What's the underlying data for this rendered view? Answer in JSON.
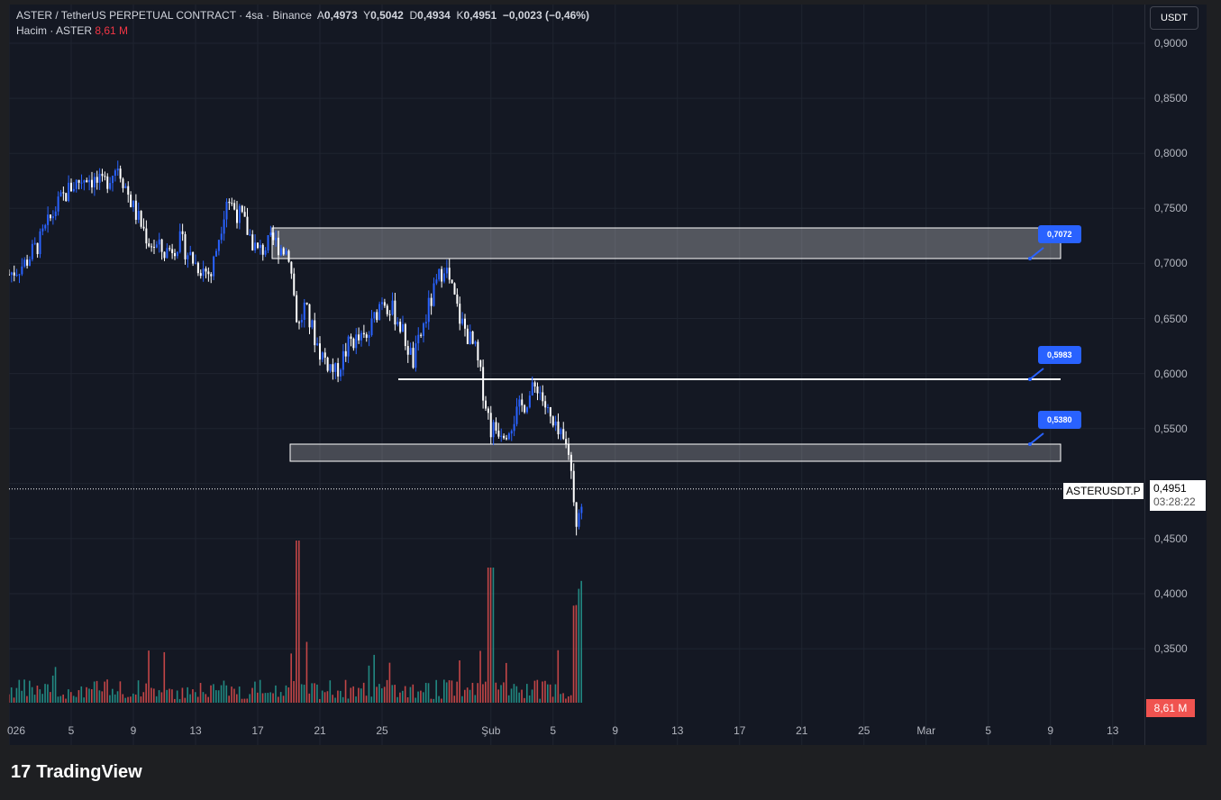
{
  "legend": {
    "title": "ASTER / TetherUS PERPETUAL CONTRACT · 4sa · Binance",
    "o_label": "A",
    "o": "0,4973",
    "h_label": "Y",
    "h": "0,5042",
    "l_label": "D",
    "l": "0,4934",
    "c_label": "K",
    "c": "0,4951",
    "change": "−0,0023 (−0,46%)",
    "volume_label": "Hacim · ASTER",
    "volume": "8,61 M"
  },
  "currency": "USDT",
  "price_axis": [
    "0,9000",
    "0,8500",
    "0,8000",
    "0,7500",
    "0,7000",
    "0,6500",
    "0,6000",
    "0,5500",
    "0,4500",
    "0,4000",
    "0,3500"
  ],
  "date_axis": [
    "026",
    "5",
    "9",
    "13",
    "17",
    "21",
    "25",
    "Şub",
    "5",
    "9",
    "13",
    "17",
    "21",
    "25",
    "Mar",
    "5",
    "9",
    "13"
  ],
  "symbol_tag": "ASTERUSDT.P",
  "last_price": "0,4951",
  "countdown": "03:28:22",
  "volume_tag": "8,61 M",
  "levels": [
    {
      "label": "0,7072",
      "value": 0.7072
    },
    {
      "label": "0,5983",
      "value": 0.5983
    },
    {
      "label": "0,5380",
      "value": 0.538
    }
  ],
  "colors": {
    "up": "#2962ff",
    "down": "#ffffff",
    "vol_up": "#26a69a",
    "vol_down": "#ef5350"
  },
  "chart_data": {
    "type": "candlestick",
    "ylim": [
      0.33,
      0.92
    ],
    "anchors_day_price": [
      [
        0,
        0.69
      ],
      [
        1,
        0.7
      ],
      [
        2,
        0.72
      ],
      [
        3,
        0.75
      ],
      [
        4,
        0.77
      ],
      [
        5,
        0.78
      ],
      [
        6,
        0.77
      ],
      [
        7,
        0.79
      ],
      [
        8,
        0.75
      ],
      [
        9,
        0.72
      ],
      [
        10,
        0.71
      ],
      [
        11,
        0.72
      ],
      [
        12,
        0.7
      ],
      [
        13,
        0.69
      ],
      [
        14,
        0.76
      ],
      [
        15,
        0.74
      ],
      [
        16,
        0.71
      ],
      [
        17,
        0.72
      ],
      [
        18,
        0.71
      ],
      [
        18.6,
        0.64
      ],
      [
        19,
        0.66
      ],
      [
        20,
        0.62
      ],
      [
        21,
        0.6
      ],
      [
        22,
        0.63
      ],
      [
        23,
        0.63
      ],
      [
        24,
        0.67
      ],
      [
        25,
        0.65
      ],
      [
        26,
        0.61
      ],
      [
        27,
        0.66
      ],
      [
        28,
        0.7
      ],
      [
        29,
        0.65
      ],
      [
        30,
        0.62
      ],
      [
        31,
        0.55
      ],
      [
        32,
        0.55
      ],
      [
        33,
        0.57
      ],
      [
        34,
        0.59
      ],
      [
        35,
        0.55
      ],
      [
        36,
        0.53
      ],
      [
        36.5,
        0.47
      ],
      [
        37,
        0.495
      ]
    ]
  },
  "brand": "TradingView"
}
